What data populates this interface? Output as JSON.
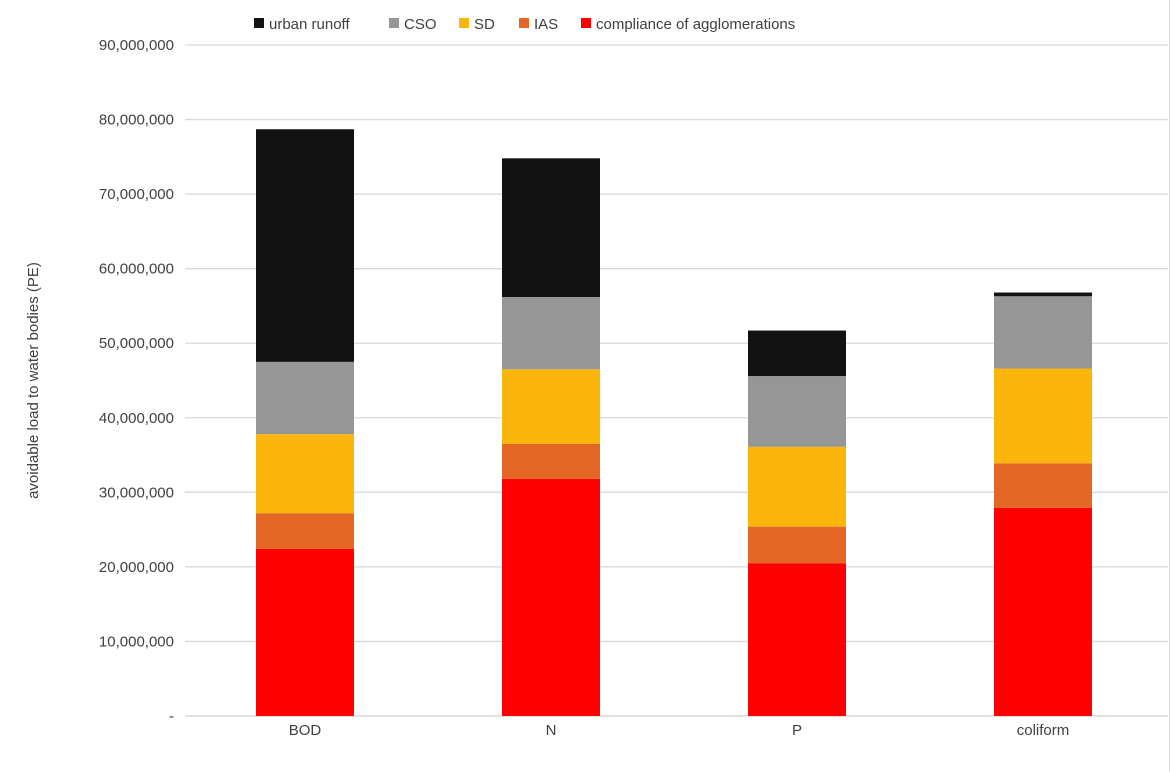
{
  "chart_data": {
    "type": "bar",
    "stacked": true,
    "title": "",
    "xlabel": "",
    "ylabel": "avoidable load to water bodies (PE)",
    "ylim": [
      0,
      90000000
    ],
    "yticks": [
      0,
      10000000,
      20000000,
      30000000,
      40000000,
      50000000,
      60000000,
      70000000,
      80000000,
      90000000
    ],
    "ytick_labels": [
      "-",
      "10,000,000",
      "20,000,000",
      "30,000,000",
      "40,000,000",
      "50,000,000",
      "60,000,000",
      "70,000,000",
      "80,000,000",
      "90,000,000"
    ],
    "grid": true,
    "legend_position": "top",
    "categories": [
      "BOD",
      "N",
      "P",
      "coliform"
    ],
    "series": [
      {
        "name": "compliance of agglomerations",
        "color": "#ff0000",
        "values": [
          22400000,
          31800000,
          20500000,
          27900000
        ]
      },
      {
        "name": "IAS",
        "color": "#e46726",
        "values": [
          4800000,
          4700000,
          4900000,
          6000000
        ]
      },
      {
        "name": "SD",
        "color": "#fbb50b",
        "values": [
          10600000,
          10000000,
          10700000,
          12700000
        ]
      },
      {
        "name": "CSO",
        "color": "#969696",
        "values": [
          9700000,
          9700000,
          9500000,
          9700000
        ]
      },
      {
        "name": "urban runoff",
        "color": "#121212",
        "values": [
          31200000,
          18600000,
          6100000,
          500000
        ]
      }
    ],
    "legend_order": [
      "urban runoff",
      "CSO",
      "SD",
      "IAS",
      "compliance of agglomerations"
    ]
  }
}
